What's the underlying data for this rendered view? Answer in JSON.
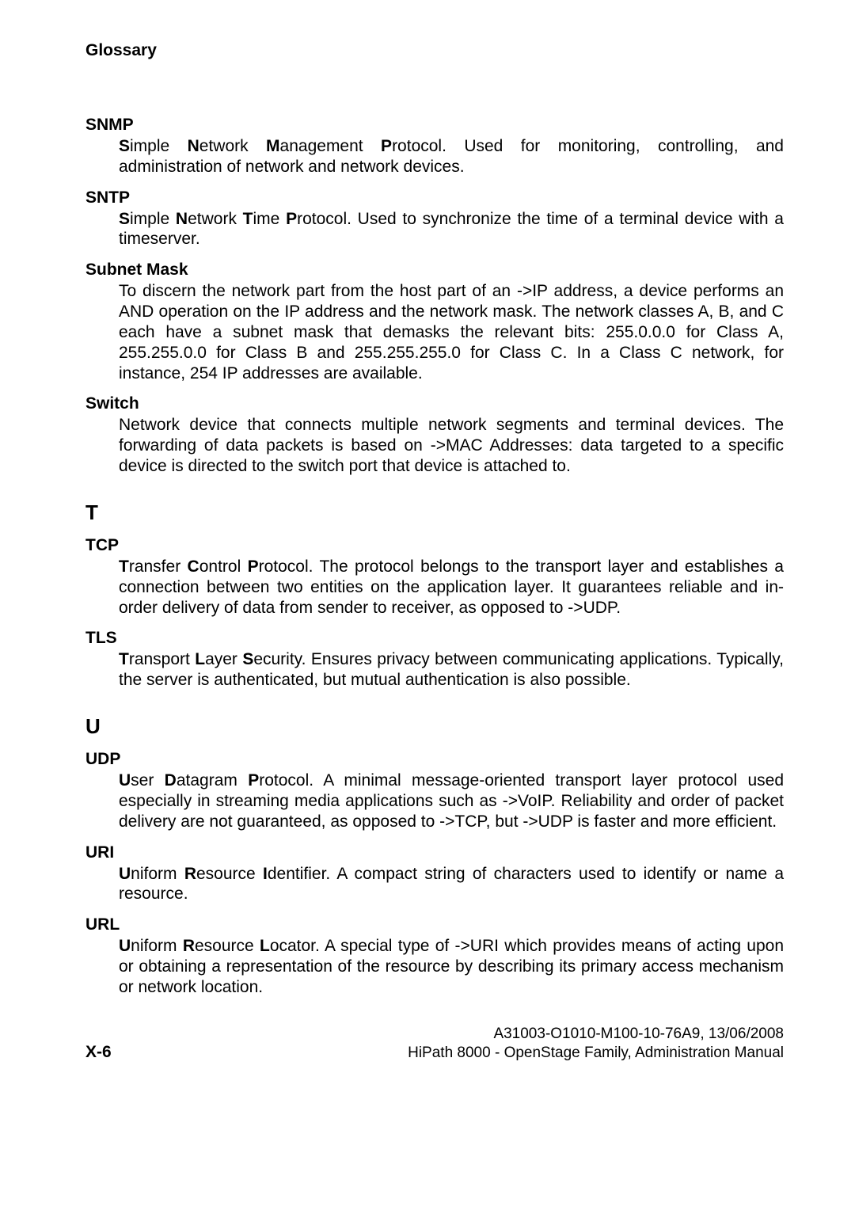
{
  "header": "Glossary",
  "entries": [
    {
      "term": "SNMP",
      "definition_parts": [
        {
          "text": "S",
          "bold": true
        },
        {
          "text": "imple "
        },
        {
          "text": "N",
          "bold": true
        },
        {
          "text": "etwork "
        },
        {
          "text": "M",
          "bold": true
        },
        {
          "text": "anagement "
        },
        {
          "text": "P",
          "bold": true
        },
        {
          "text": "rotocol. Used for monitoring, controlling, and administration of network and network devices."
        }
      ]
    },
    {
      "term": "SNTP",
      "definition_parts": [
        {
          "text": "S",
          "bold": true
        },
        {
          "text": "imple "
        },
        {
          "text": "N",
          "bold": true
        },
        {
          "text": "etwork "
        },
        {
          "text": "T",
          "bold": true
        },
        {
          "text": "ime "
        },
        {
          "text": "P",
          "bold": true
        },
        {
          "text": "rotocol. Used to synchronize the time of a terminal device with a timeserver."
        }
      ]
    },
    {
      "term": "Subnet Mask",
      "definition_parts": [
        {
          "text": "To discern the network part from the host part of an ->IP address, a device performs an AND operation on the IP address and the network mask. The network classes A, B, and C each have a subnet mask that demasks the relevant bits: 255.0.0.0 for Class A, 255.255.0.0 for Class B and 255.255.255.0 for Class C. In a Class C network, for instance, 254 IP addresses are available."
        }
      ]
    },
    {
      "term": "Switch",
      "definition_parts": [
        {
          "text": "Network device that connects multiple network segments and terminal devices. The forwarding of data packets is based on ->MAC Addresses: data targeted to a specific device is directed to the switch port that device is attached to."
        }
      ]
    }
  ],
  "section_t": "T",
  "entries_t": [
    {
      "term": "TCP",
      "definition_parts": [
        {
          "text": "T",
          "bold": true
        },
        {
          "text": "ransfer "
        },
        {
          "text": "C",
          "bold": true
        },
        {
          "text": "ontrol "
        },
        {
          "text": "P",
          "bold": true
        },
        {
          "text": "rotocol. The protocol belongs to the transport layer and establishes a connection between two entities on the application layer. It guarantees reliable and in-order delivery of data from sender to receiver, as opposed to ->UDP."
        }
      ]
    },
    {
      "term": "TLS",
      "definition_parts": [
        {
          "text": "T",
          "bold": true
        },
        {
          "text": "ransport "
        },
        {
          "text": "L",
          "bold": true
        },
        {
          "text": "ayer "
        },
        {
          "text": "S",
          "bold": true
        },
        {
          "text": "ecurity. Ensures privacy between communicating applications. Typically, the server is authenticated, but mutual authentication is also possible."
        }
      ]
    }
  ],
  "section_u": "U",
  "entries_u": [
    {
      "term": "UDP",
      "definition_parts": [
        {
          "text": "U",
          "bold": true
        },
        {
          "text": "ser "
        },
        {
          "text": "D",
          "bold": true
        },
        {
          "text": "atagram "
        },
        {
          "text": "P",
          "bold": true
        },
        {
          "text": "rotocol. A minimal message-oriented transport layer protocol used especially in streaming media applications such as ->VoIP. Reliability and order of packet delivery are not guaranteed, as opposed to ->TCP, but ->UDP is faster and more efficient."
        }
      ]
    },
    {
      "term": "URI",
      "definition_parts": [
        {
          "text": "U",
          "bold": true
        },
        {
          "text": "niform "
        },
        {
          "text": "R",
          "bold": true
        },
        {
          "text": "esource "
        },
        {
          "text": "I",
          "bold": true
        },
        {
          "text": "dentifier. A compact string of characters used to identify or name a resource."
        }
      ]
    },
    {
      "term": "URL",
      "definition_parts": [
        {
          "text": "U",
          "bold": true
        },
        {
          "text": "niform "
        },
        {
          "text": "R",
          "bold": true
        },
        {
          "text": "esource "
        },
        {
          "text": "L",
          "bold": true
        },
        {
          "text": "ocator. A special type of ->URI which provides means of acting upon or obtaining a representation of the resource by describing its primary access mechanism or network location."
        }
      ]
    }
  ],
  "footer": {
    "line1": "A31003-O1010-M100-10-76A9, 13/06/2008",
    "line2": "HiPath 8000 - OpenStage Family, Administration Manual",
    "page_num": "X-6"
  }
}
